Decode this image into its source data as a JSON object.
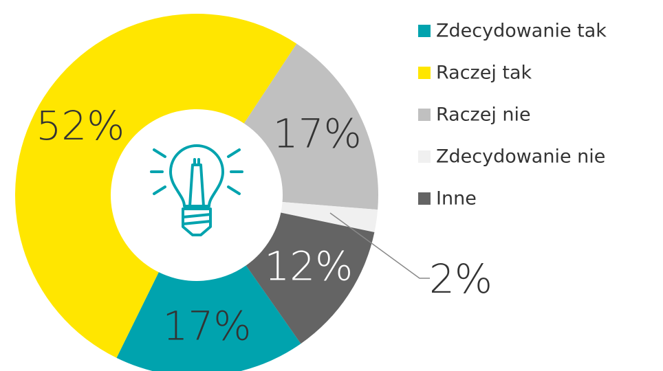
{
  "chart_data": {
    "type": "donut",
    "categories": [
      "Zdecydowanie tak",
      "Raczej tak",
      "Raczej nie",
      "Zdecydowanie nie",
      "Inne"
    ],
    "values": [
      17,
      52,
      17,
      2,
      12
    ],
    "value_labels": [
      "17%",
      "52%",
      "17%",
      "2%",
      "12%"
    ],
    "colors": [
      "#00a3ae",
      "#ffe600",
      "#c0c0c0",
      "#f0f0f0",
      "#646464"
    ],
    "legend": "right"
  }
}
